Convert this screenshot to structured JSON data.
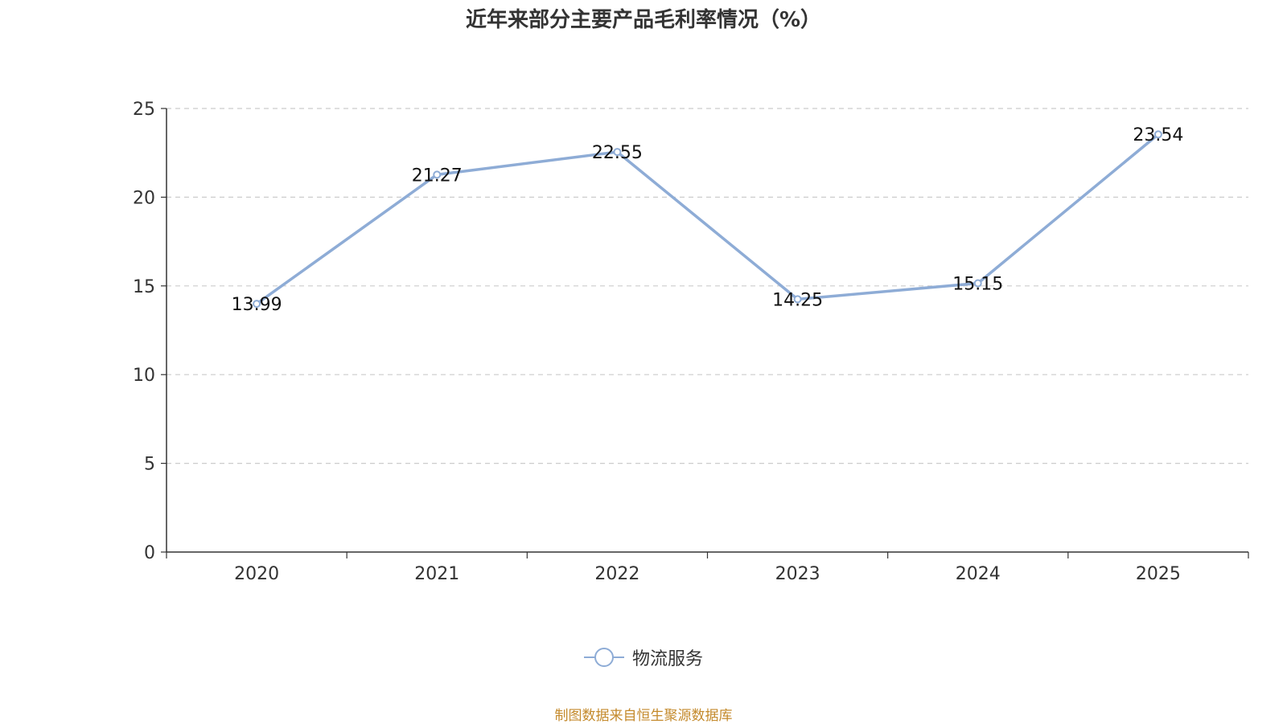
{
  "chart_data": {
    "type": "line",
    "title": "近年来部分主要产品毛利率情况（%）",
    "categories": [
      "2020",
      "2021",
      "2022",
      "2023",
      "2024",
      "2025"
    ],
    "series": [
      {
        "name": "物流服务",
        "values": [
          13.99,
          21.27,
          22.55,
          14.25,
          15.15,
          23.54
        ],
        "color": "#8eacd6"
      }
    ],
    "ylim": [
      0,
      25
    ],
    "yticks": [
      0,
      5,
      10,
      15,
      20,
      25
    ],
    "grid": true,
    "legend": "bottom-center"
  },
  "source_note": "制图数据来自恒生聚源数据库"
}
